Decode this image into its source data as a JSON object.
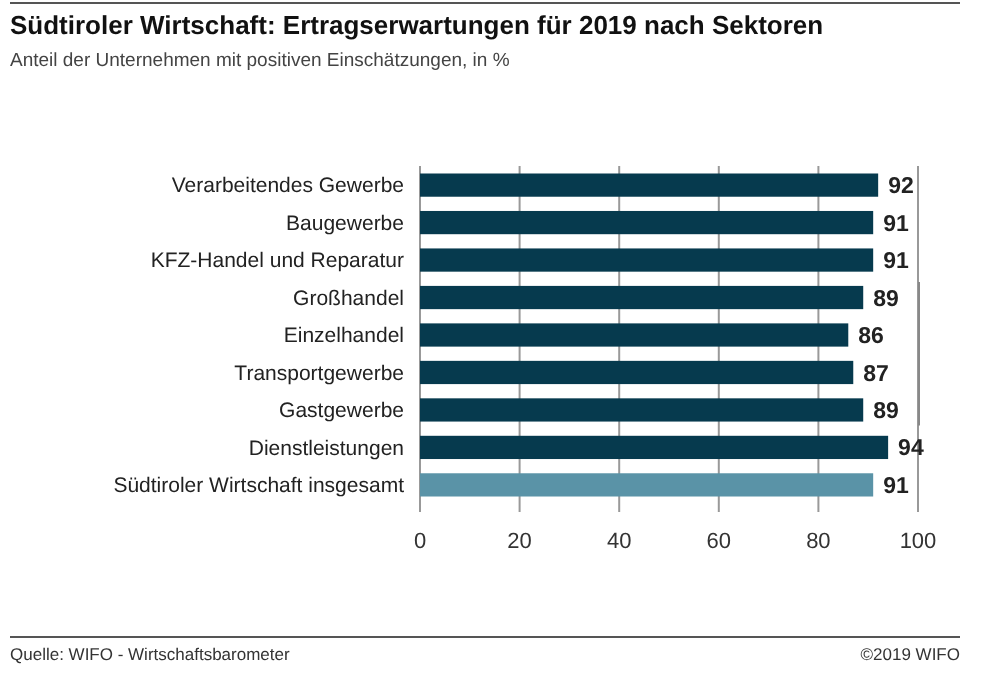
{
  "chart_data": {
    "type": "bar",
    "orientation": "horizontal",
    "title": "Südtiroler Wirtschaft: Ertragserwartungen für 2019 nach Sektoren",
    "subtitle": "Anteil der Unternehmen mit positiven Einschätzungen, in %",
    "categories": [
      "Verarbeitendes Gewerbe",
      "Baugewerbe",
      "KFZ-Handel und Reparatur",
      "Großhandel",
      "Einzelhandel",
      "Transportgewerbe",
      "Gastgewerbe",
      "Dienstleistungen",
      "Südtiroler Wirtschaft insgesamt"
    ],
    "values": [
      92,
      91,
      91,
      89,
      86,
      87,
      89,
      94,
      91
    ],
    "colors": [
      "#063a4e",
      "#063a4e",
      "#063a4e",
      "#063a4e",
      "#063a4e",
      "#063a4e",
      "#063a4e",
      "#063a4e",
      "#5a93a7"
    ],
    "xlim": [
      0,
      100
    ],
    "xticks": [
      0,
      20,
      40,
      60,
      80,
      100
    ],
    "grid": "x",
    "data_labels": true,
    "annotations": [
      "Quelle: WIFO - Wirtschaftsbarometer",
      "©2019 WIFO"
    ]
  }
}
